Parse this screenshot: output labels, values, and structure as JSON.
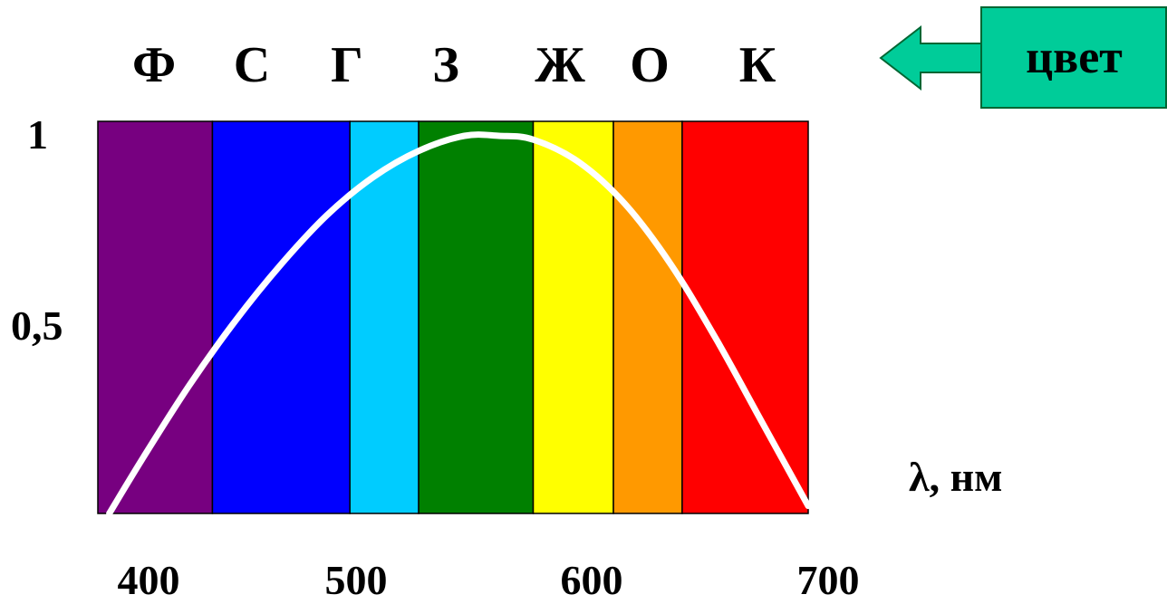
{
  "chart_data": {
    "type": "area",
    "color_letters": [
      "Ф",
      "С",
      "Г",
      "З",
      "Ж",
      "О",
      "К"
    ],
    "bands": [
      {
        "from": 380,
        "to": 430,
        "color": "#770080"
      },
      {
        "from": 430,
        "to": 490,
        "color": "#0000FF"
      },
      {
        "from": 490,
        "to": 520,
        "color": "#00CCFF"
      },
      {
        "from": 520,
        "to": 570,
        "color": "#008000"
      },
      {
        "from": 570,
        "to": 605,
        "color": "#FFFF00"
      },
      {
        "from": 605,
        "to": 635,
        "color": "#FF9900"
      },
      {
        "from": 635,
        "to": 690,
        "color": "#FF0000"
      }
    ],
    "series": [
      {
        "x": [
          385,
          400,
          420,
          440,
          460,
          480,
          500,
          520,
          540,
          555,
          570,
          590,
          610,
          630,
          650,
          670,
          690
        ],
        "y": [
          0.0,
          0.15,
          0.34,
          0.51,
          0.66,
          0.79,
          0.89,
          0.96,
          1.0,
          1.0,
          0.99,
          0.93,
          0.82,
          0.66,
          0.46,
          0.24,
          0.02
        ],
        "color": "#FFFFFF"
      }
    ],
    "xlabel": "λ, нм",
    "xticks": [
      "400",
      "500",
      "600",
      "700"
    ],
    "yticks": [
      "1",
      "0,5"
    ],
    "xlim": [
      380,
      690
    ],
    "ylim": [
      0,
      1
    ],
    "grid": false
  },
  "callout": {
    "label": "цвет",
    "fill": "#00CC99",
    "border": "#006633"
  }
}
